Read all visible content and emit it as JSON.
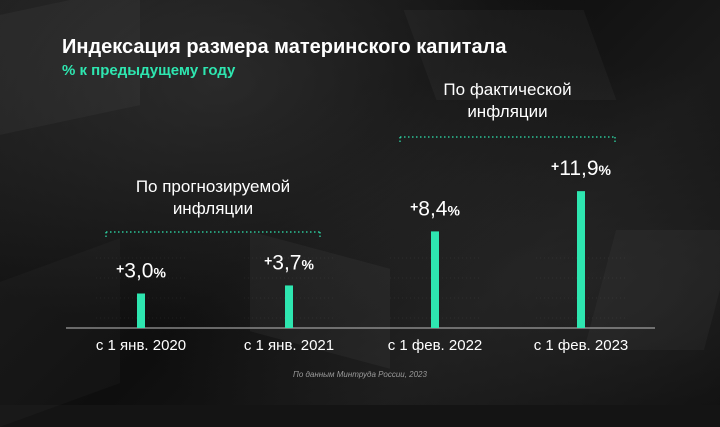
{
  "title": "Индексация размера материнского капитала",
  "subtitle": "% к предыдущему году",
  "source": "По данным Минтруда России, 2023",
  "colors": {
    "accent": "#2ee6b0",
    "background": "#141414",
    "text": "#ffffff"
  },
  "groups": [
    {
      "label_lines": [
        "По прогнозируемой",
        "инфляции"
      ],
      "categories": [
        0,
        1
      ]
    },
    {
      "label_lines": [
        "По фактической",
        "инфляции"
      ],
      "categories": [
        2,
        3
      ]
    }
  ],
  "chart_data": {
    "type": "bar",
    "categories": [
      "с 1 янв. 2020",
      "с 1 янв. 2021",
      "с 1 фев. 2022",
      "с 1 фев. 2023"
    ],
    "values": [
      3.0,
      3.7,
      8.4,
      11.9
    ],
    "value_labels": [
      {
        "sign": "+",
        "number": "3,0",
        "unit": "%"
      },
      {
        "sign": "+",
        "number": "3,7",
        "unit": "%"
      },
      {
        "sign": "+",
        "number": "8,4",
        "unit": "%"
      },
      {
        "sign": "+",
        "number": "11,9",
        "unit": "%"
      }
    ],
    "title": "Индексация размера материнского капитала",
    "subtitle": "% к предыдущему году",
    "xlabel": "",
    "ylabel": "",
    "ylim": [
      0,
      12
    ],
    "grid": false
  }
}
